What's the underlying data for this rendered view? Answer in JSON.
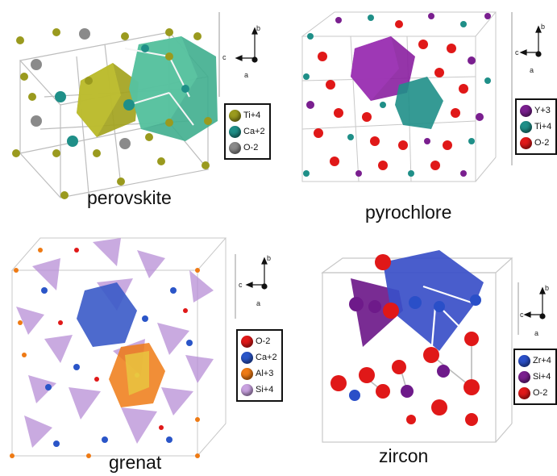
{
  "panels": [
    {
      "key": "perovskite",
      "caption": "perovskite",
      "legend": [
        {
          "label": "Ti+4",
          "color": "#9a9a1e"
        },
        {
          "label": "Ca+2",
          "color": "#1f8f88"
        },
        {
          "label": "O-2",
          "color": "#8a8a8a"
        }
      ],
      "axes": {
        "up": "b",
        "left": "c",
        "down": "a"
      }
    },
    {
      "key": "pyrochlore",
      "caption": "pyrochlore",
      "legend": [
        {
          "label": "Y+3",
          "color": "#7a1f8f"
        },
        {
          "label": "Ti+4",
          "color": "#1f8f88"
        },
        {
          "label": "O-2",
          "color": "#e01818"
        }
      ],
      "axes": {
        "up": "b",
        "left": "c",
        "down": "a"
      }
    },
    {
      "key": "grenat",
      "caption": "grenat",
      "legend": [
        {
          "label": "O-2",
          "color": "#e01818"
        },
        {
          "label": "Ca+2",
          "color": "#2a55c8"
        },
        {
          "label": "Al+3",
          "color": "#ee7a14"
        },
        {
          "label": "Si+4",
          "color": "#c9a2e0"
        }
      ],
      "axes": {
        "up": "b",
        "left": "c",
        "down": "a"
      }
    },
    {
      "key": "zircon",
      "caption": "zircon",
      "legend": [
        {
          "label": "Zr+4",
          "color": "#2a4fc8"
        },
        {
          "label": "Si+4",
          "color": "#7a1f8f"
        },
        {
          "label": "O-2",
          "color": "#e01818"
        }
      ],
      "axes": {
        "up": "b",
        "left": "c",
        "down": "a"
      }
    }
  ]
}
